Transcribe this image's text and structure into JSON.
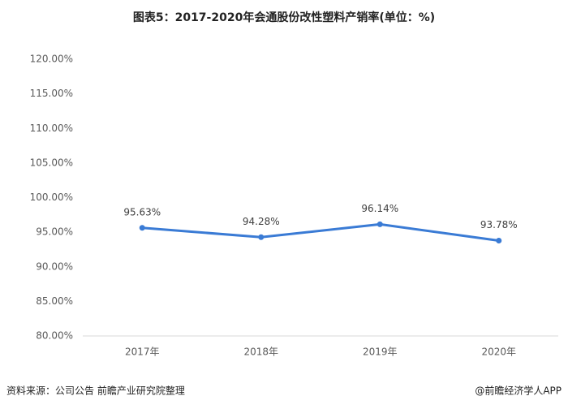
{
  "chart_data": {
    "type": "line",
    "title": "图表5：2017-2020年会通股份改性塑料产销率(单位：%)",
    "categories": [
      "2017年",
      "2018年",
      "2019年",
      "2020年"
    ],
    "series": [
      {
        "name": "产销率",
        "color": "#3a7bd5",
        "values": [
          95.63,
          94.28,
          96.14,
          93.78
        ],
        "value_labels": [
          "95.63%",
          "94.28%",
          "96.14%",
          "93.78%"
        ]
      }
    ],
    "ylim": [
      80,
      120
    ],
    "yticks": [
      {
        "value": 80,
        "label": "80.00%"
      },
      {
        "value": 85,
        "label": "85.00%"
      },
      {
        "value": 90,
        "label": "90.00%"
      },
      {
        "value": 95,
        "label": "95.00%"
      },
      {
        "value": 100,
        "label": "100.00%"
      },
      {
        "value": 105,
        "label": "105.00%"
      },
      {
        "value": 110,
        "label": "110.00%"
      },
      {
        "value": 115,
        "label": "115.00%"
      },
      {
        "value": 120,
        "label": "120.00%"
      }
    ],
    "grid": false,
    "source": "资料来源：公司公告 前瞻产业研究院整理",
    "credit": "@前瞻经济学人APP"
  }
}
